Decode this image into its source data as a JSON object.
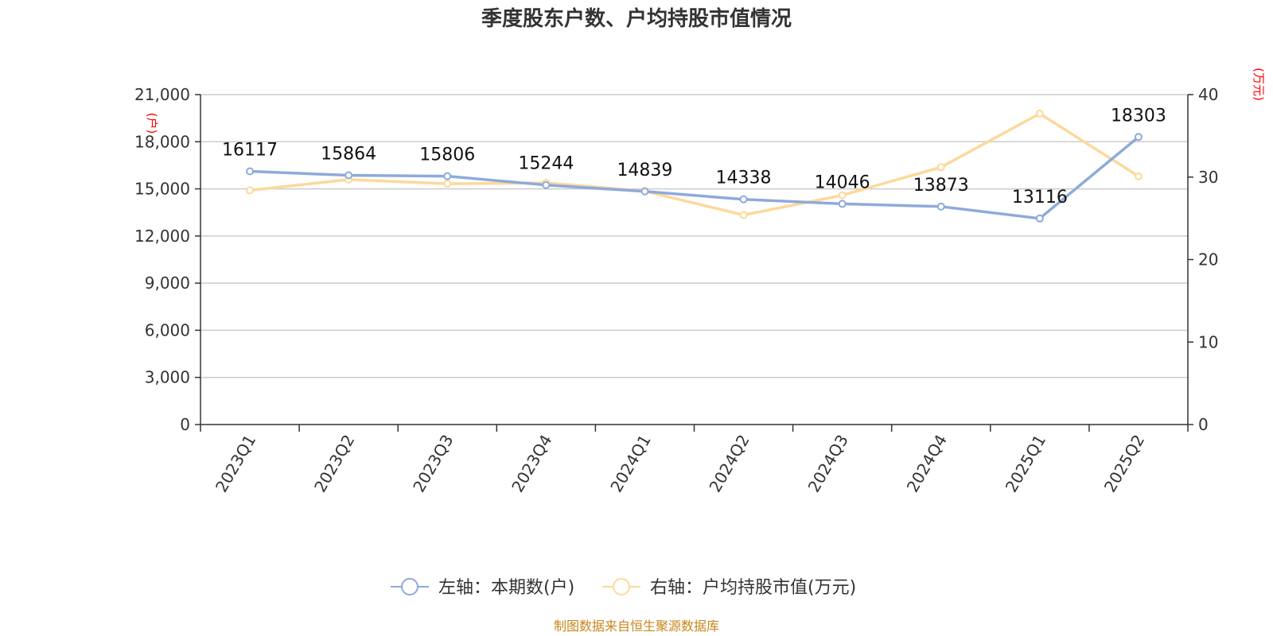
{
  "chart_data": {
    "type": "line",
    "title": "季度股东户数、户均持股市值情况",
    "categories": [
      "2023Q1",
      "2023Q2",
      "2023Q3",
      "2023Q4",
      "2024Q1",
      "2024Q2",
      "2024Q3",
      "2024Q4",
      "2025Q1",
      "2025Q2"
    ],
    "left_axis": {
      "unit": "(户)",
      "ylim": [
        0,
        21000
      ],
      "ticks": [
        0,
        3000,
        6000,
        9000,
        12000,
        15000,
        18000,
        21000
      ],
      "tick_labels": [
        "0",
        "3,000",
        "6,000",
        "9,000",
        "12,000",
        "15,000",
        "18,000",
        "21,000"
      ]
    },
    "right_axis": {
      "unit": "(万元)",
      "ylim": [
        0,
        40
      ],
      "ticks": [
        0,
        10,
        20,
        30,
        40
      ],
      "tick_labels": [
        "0",
        "10",
        "20",
        "30",
        "40"
      ]
    },
    "series": [
      {
        "name": "左轴：本期数(户)",
        "axis": "left",
        "color": "#8eaadb",
        "values": [
          16117,
          15864,
          15806,
          15244,
          14839,
          14338,
          14046,
          13873,
          13116,
          18303
        ],
        "data_labels": [
          "16117",
          "15864",
          "15806",
          "15244",
          "14839",
          "14338",
          "14046",
          "13873",
          "13116",
          "18303"
        ]
      },
      {
        "name": "右轴：户均持股市值(万元)",
        "axis": "right",
        "color": "#fcd99b",
        "values": [
          28.4,
          29.7,
          29.2,
          29.3,
          28.3,
          25.4,
          27.8,
          31.2,
          37.7,
          30.1
        ]
      }
    ],
    "grid": true,
    "legend_position": "bottom"
  },
  "source_text": "制图数据来自恒生聚源数据库",
  "colors": {
    "axis": "#333333",
    "grid": "#cccccc",
    "unit_label": "#ff0000",
    "source": "#c8861c"
  }
}
